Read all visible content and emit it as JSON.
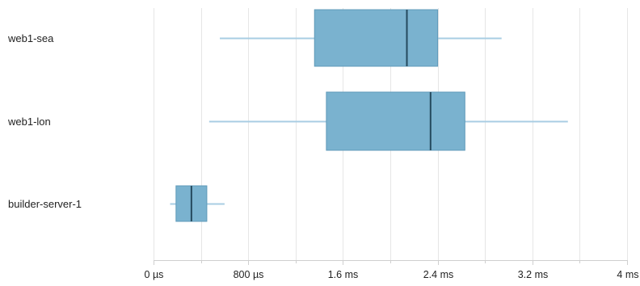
{
  "chart_data": {
    "type": "boxplot",
    "categories": [
      "web1-sea",
      "web1-lon",
      "builder-server-1"
    ],
    "unit": "ms",
    "series": [
      {
        "min": 0.56,
        "q1": 1.36,
        "median": 2.14,
        "q3": 2.4,
        "max": 2.94
      },
      {
        "min": 0.47,
        "q1": 1.46,
        "median": 2.34,
        "q3": 2.63,
        "max": 3.5
      },
      {
        "min": 0.14,
        "q1": 0.19,
        "median": 0.32,
        "q3": 0.45,
        "max": 0.6
      }
    ],
    "xlim": [
      0,
      4
    ],
    "x_ticks": [
      {
        "value": 0,
        "label": "0 µs"
      },
      {
        "value": 0.8,
        "label": "800 µs"
      },
      {
        "value": 1.6,
        "label": "1.6 ms"
      },
      {
        "value": 2.4,
        "label": "2.4 ms"
      },
      {
        "value": 3.2,
        "label": "3.2 ms"
      },
      {
        "value": 4.0,
        "label": "4 ms"
      }
    ],
    "minor_ticks": [
      0.4,
      1.2,
      2.0,
      2.8,
      3.6
    ],
    "grid": true,
    "colors": {
      "box": "#7ab2cf",
      "box_stroke": "#5f9ab9",
      "whisker": "#a8cde3",
      "median": "#254a5e",
      "grid": "#e6e6e6",
      "axis": "#cfcfcf"
    }
  }
}
